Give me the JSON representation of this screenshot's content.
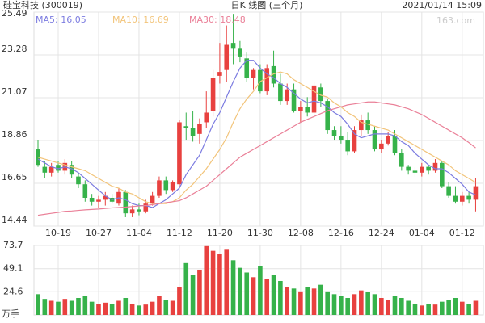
{
  "chart_data": {
    "type": "candlestick",
    "title": "硅宝科技 (300019)",
    "subtitle": "日K 线图 (三个月)",
    "timestamp": "2021/01/14 15:09",
    "watermark": "163.com",
    "categories": [
      null,
      null,
      null,
      "10-19",
      null,
      null,
      null,
      null,
      null,
      "10-27",
      null,
      null,
      null,
      null,
      null,
      "11-04",
      null,
      null,
      null,
      null,
      null,
      "11-12",
      null,
      null,
      null,
      null,
      null,
      "11-20",
      null,
      null,
      null,
      null,
      null,
      "11-30",
      null,
      null,
      null,
      null,
      null,
      "12-08",
      null,
      null,
      null,
      null,
      null,
      "12-16",
      null,
      null,
      null,
      null,
      null,
      "12-24",
      null,
      null,
      null,
      null,
      null,
      "01-04",
      null,
      null,
      null,
      null,
      null,
      "01-12",
      null,
      null
    ],
    "open": [
      18.4,
      17.5,
      17.2,
      17.6,
      17.3,
      17.6,
      17.0,
      16.6,
      15.9,
      15.7,
      15.8,
      15.9,
      15.6,
      16.2,
      15.1,
      15.3,
      15.2,
      15.6,
      16.0,
      16.8,
      16.3,
      16.6,
      19.6,
      19.5,
      19.2,
      19.8,
      20.4,
      22.2,
      22.5,
      23.9,
      23.6,
      23.1,
      22.1,
      22.5,
      21.4,
      22.7,
      21.8,
      20.9,
      21.5,
      20.4,
      20.6,
      20.3,
      21.6,
      20.9,
      19.4,
      19.1,
      18.9,
      18.3,
      19.4,
      19.9,
      19.4,
      18.4,
      18.7,
      19.1,
      18.2,
      17.5,
      17.3,
      17.2,
      17.5,
      17.3,
      17.7,
      16.5,
      16.0,
      15.7,
      16.0,
      15.8
    ],
    "high": [
      18.9,
      17.8,
      17.7,
      17.8,
      17.9,
      17.8,
      17.2,
      16.8,
      16.1,
      16.0,
      16.2,
      16.1,
      16.4,
      16.3,
      15.5,
      15.6,
      15.8,
      16.2,
      17.0,
      17.0,
      16.8,
      19.9,
      20.3,
      20.4,
      20.0,
      21.4,
      22.5,
      23.9,
      24.8,
      25.4,
      24.0,
      23.4,
      22.6,
      22.8,
      22.8,
      23.5,
      22.3,
      21.8,
      21.8,
      20.9,
      21.1,
      21.9,
      21.8,
      21.0,
      19.6,
      19.6,
      19.3,
      19.6,
      20.2,
      20.3,
      19.6,
      18.9,
      19.3,
      19.4,
      18.4,
      17.6,
      17.5,
      17.7,
      17.6,
      17.9,
      17.8,
      16.7,
      16.5,
      16.2,
      16.2,
      16.9
    ],
    "low": [
      17.5,
      16.9,
      17.0,
      17.2,
      17.1,
      16.9,
      16.4,
      15.7,
      15.5,
      15.4,
      15.5,
      15.6,
      15.5,
      14.9,
      14.9,
      15.0,
      15.1,
      15.5,
      15.9,
      16.1,
      16.2,
      16.5,
      18.9,
      18.8,
      18.7,
      19.5,
      20.1,
      21.8,
      21.9,
      22.8,
      22.9,
      21.9,
      21.5,
      21.3,
      21.2,
      21.6,
      20.7,
      20.7,
      20.3,
      19.8,
      20.1,
      20.2,
      20.6,
      19.2,
      18.9,
      18.7,
      18.1,
      18.2,
      19.1,
      19.2,
      18.3,
      18.2,
      18.6,
      18.1,
      17.3,
      17.1,
      17.0,
      17.0,
      17.1,
      17.2,
      16.4,
      15.9,
      15.6,
      15.5,
      15.6,
      15.2
    ],
    "close": [
      17.6,
      17.2,
      17.5,
      17.3,
      17.7,
      17.1,
      16.6,
      15.9,
      15.7,
      15.8,
      16.0,
      15.7,
      16.2,
      15.1,
      15.3,
      15.2,
      15.6,
      16.0,
      16.8,
      16.3,
      16.7,
      19.8,
      19.5,
      19.1,
      19.7,
      20.3,
      22.1,
      22.4,
      23.8,
      23.6,
      23.2,
      22.1,
      22.5,
      21.4,
      22.6,
      21.8,
      20.9,
      21.5,
      20.4,
      20.6,
      20.3,
      21.7,
      20.9,
      19.4,
      19.1,
      18.9,
      18.3,
      19.4,
      19.9,
      19.4,
      18.4,
      18.7,
      19.1,
      18.2,
      17.5,
      17.3,
      17.2,
      17.5,
      17.3,
      17.7,
      16.5,
      16.0,
      15.7,
      16.0,
      15.8,
      16.5
    ],
    "up_color": "#e8413f",
    "down_color": "#36b24a",
    "series": [
      {
        "name": "MA5: 16.05",
        "color": "#7b7be0",
        "values": [
          17.9,
          17.7,
          17.5,
          17.4,
          17.5,
          17.4,
          17.2,
          16.9,
          16.6,
          16.3,
          16.0,
          15.8,
          15.9,
          15.8,
          15.6,
          15.5,
          15.5,
          15.4,
          15.6,
          15.8,
          16.1,
          16.4,
          17.1,
          17.6,
          18.1,
          18.9,
          19.7,
          20.3,
          21.1,
          21.9,
          22.6,
          23.0,
          23.0,
          22.6,
          22.3,
          22.1,
          21.8,
          21.6,
          21.3,
          21.0,
          20.8,
          20.9,
          20.8,
          20.6,
          20.3,
          20.1,
          19.7,
          19.2,
          19.0,
          19.1,
          19.2,
          19.2,
          19.2,
          19.1,
          18.8,
          18.6,
          18.2,
          17.9,
          17.6,
          17.4,
          17.4,
          17.2,
          16.9,
          16.6,
          16.2,
          16.05
        ]
      },
      {
        "name": "MA10: 16.69",
        "color": "#f2c47a",
        "values": [
          18.0,
          17.9,
          17.8,
          17.7,
          17.6,
          17.5,
          17.4,
          17.3,
          17.1,
          16.9,
          16.7,
          16.5,
          16.4,
          16.2,
          16.1,
          15.9,
          15.7,
          15.6,
          15.6,
          15.6,
          15.7,
          15.9,
          16.3,
          16.6,
          17.0,
          17.4,
          17.9,
          18.4,
          19.0,
          19.8,
          20.5,
          21.0,
          21.4,
          21.9,
          22.1,
          22.3,
          22.4,
          22.3,
          22.0,
          21.8,
          21.6,
          21.4,
          21.2,
          21.1,
          20.8,
          20.6,
          20.3,
          20.1,
          19.8,
          19.7,
          19.6,
          19.5,
          19.4,
          19.2,
          19.0,
          18.8,
          18.6,
          18.4,
          18.2,
          18.0,
          17.8,
          17.6,
          17.3,
          17.1,
          16.9,
          16.69
        ]
      },
      {
        "name": "MA30: 18.48",
        "color": "#ea8098",
        "values": [
          15.0,
          15.05,
          15.1,
          15.15,
          15.2,
          15.22,
          15.25,
          15.28,
          15.3,
          15.32,
          15.35,
          15.38,
          15.4,
          15.42,
          15.45,
          15.48,
          15.5,
          15.55,
          15.6,
          15.65,
          15.7,
          15.75,
          15.9,
          16.1,
          16.3,
          16.5,
          16.8,
          17.1,
          17.4,
          17.7,
          18.0,
          18.2,
          18.4,
          18.6,
          18.8,
          19.0,
          19.2,
          19.4,
          19.6,
          19.8,
          19.95,
          20.1,
          20.25,
          20.4,
          20.5,
          20.6,
          20.7,
          20.75,
          20.8,
          20.85,
          20.85,
          20.8,
          20.75,
          20.7,
          20.6,
          20.5,
          20.35,
          20.2,
          20.0,
          19.8,
          19.6,
          19.4,
          19.2,
          19.0,
          18.75,
          18.48
        ]
      }
    ],
    "ylim": [
      14.44,
      25.49
    ],
    "yticks": [
      14.44,
      16.65,
      18.86,
      21.07,
      23.28,
      25.49
    ],
    "grid": true,
    "volume": [
      22,
      17,
      15,
      14,
      17,
      15,
      18,
      20,
      14,
      12,
      13,
      12,
      15,
      18,
      12,
      10,
      11,
      14,
      20,
      16,
      15,
      30,
      55,
      42,
      48,
      73,
      68,
      65,
      70,
      58,
      50,
      45,
      40,
      52,
      38,
      42,
      36,
      30,
      28,
      25,
      30,
      28,
      32,
      25,
      22,
      20,
      18,
      22,
      26,
      24,
      22,
      18,
      16,
      20,
      18,
      15,
      12,
      10,
      12,
      11,
      14,
      16,
      18,
      14,
      12,
      15
    ],
    "volume_unit": "万手",
    "y2lim": [
      0,
      73.7
    ],
    "y2ticks": [
      24.6,
      49.1,
      73.7
    ]
  }
}
